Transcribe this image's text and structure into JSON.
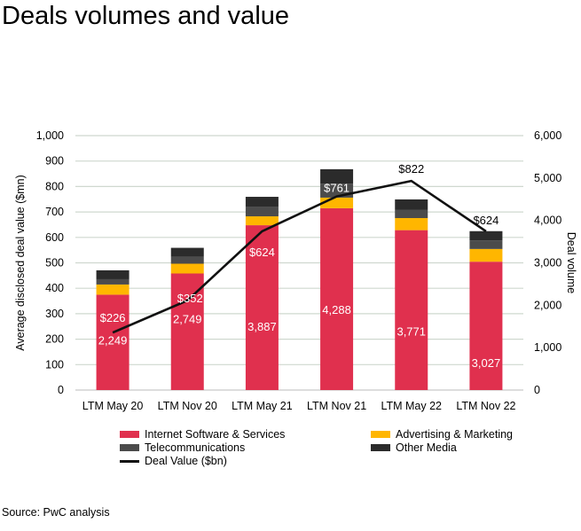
{
  "title": "Deals volumes and value",
  "source": "Source: PwC analysis",
  "chart_data": {
    "type": "bar",
    "stacked": true,
    "categories": [
      "LTM May 20",
      "LTM Nov 20",
      "LTM May 21",
      "LTM Nov 21",
      "LTM May 22",
      "LTM Nov 22"
    ],
    "series": [
      {
        "name": "Internet Software & Services",
        "axis": "right",
        "color": "#e0304e",
        "values": [
          2249,
          2749,
          3887,
          4288,
          3771,
          3027
        ],
        "labels": [
          "2,249",
          "2,749",
          "3,887",
          "4,288",
          "3,771",
          "3,027"
        ]
      },
      {
        "name": "Advertising & Marketing",
        "axis": "right",
        "color": "#ffb600",
        "values": [
          240,
          230,
          210,
          250,
          285,
          300
        ],
        "labels": []
      },
      {
        "name": "Telecommunications",
        "axis": "right",
        "color": "#4b4b4b",
        "values": [
          125,
          165,
          230,
          330,
          190,
          200
        ],
        "labels": []
      },
      {
        "name": "Other Media",
        "axis": "right",
        "color": "#2b2b2b",
        "values": [
          210,
          210,
          230,
          340,
          250,
          220
        ],
        "labels": []
      },
      {
        "name": "Deal Value ($bn)",
        "type": "line",
        "axis": "left",
        "color": "#111111",
        "values": [
          226,
          352,
          624,
          761,
          822,
          624
        ],
        "labels": [
          "$226",
          "$352",
          "$624",
          "$761",
          "$822",
          "$624"
        ]
      }
    ],
    "ylabel": "Average disclosed deal value ($mn)",
    "ylim": [
      0,
      1000
    ],
    "yticks": [
      "0",
      "100",
      "200",
      "300",
      "400",
      "500",
      "600",
      "700",
      "800",
      "900",
      "1,000"
    ],
    "y2label": "Deal volume",
    "y2lim": [
      0,
      6000
    ],
    "y2ticks": [
      "0",
      "1,000",
      "2,000",
      "3,000",
      "4,000",
      "5,000",
      "6,000"
    ],
    "grid": true,
    "legend": "bottom"
  }
}
